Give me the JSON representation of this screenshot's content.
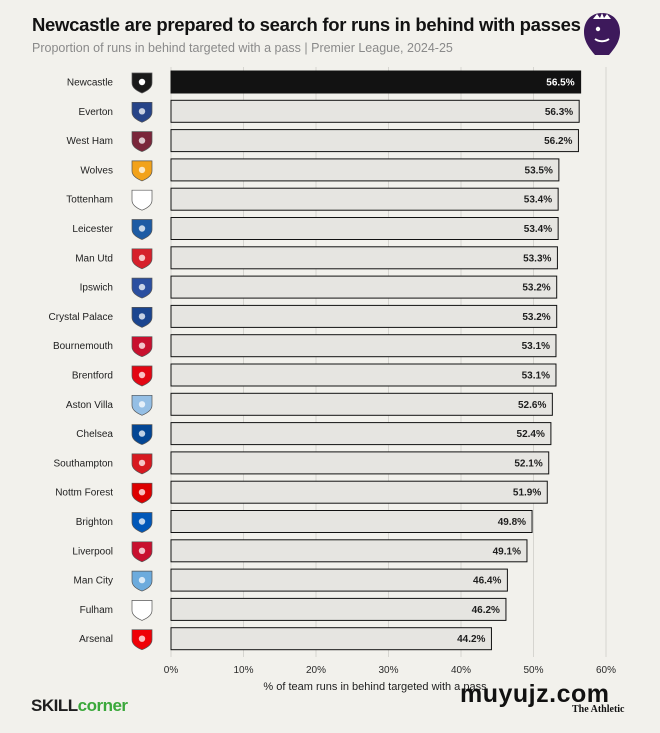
{
  "header": {
    "title": "Newcastle are prepared to search for runs in behind with passes",
    "subtitle": "Proportion of runs in behind targeted with a pass | Premier League, 2024-25"
  },
  "icons": {
    "league_logo": "premier-league-lion-icon",
    "team_badge": "club-crest-icon"
  },
  "colors": {
    "background": "#f2f1ec",
    "highlight_bar": "#121212",
    "bar": "#e6e5e1",
    "bar_border": "#121212",
    "league_purple": "#3d195b",
    "brand_green": "#3ba83b"
  },
  "footer": {
    "brand_a": "SKILL",
    "brand_b": "corner",
    "watermark": "muyujz.com",
    "publisher": "The Athletic"
  },
  "chart_data": {
    "type": "bar",
    "orientation": "horizontal",
    "title": "Newcastle are prepared to search for runs in behind with passes",
    "subtitle": "Proportion of runs in behind targeted with a pass | Premier League, 2024-25",
    "xlabel": "% of team runs in behind targeted with a pass",
    "xlim": [
      0,
      60
    ],
    "xticks": [
      "0%",
      "10%",
      "20%",
      "30%",
      "40%",
      "50%",
      "60%"
    ],
    "tick_values": [
      0,
      10,
      20,
      30,
      40,
      50,
      60
    ],
    "grid": true,
    "highlight": "Newcastle",
    "categories": [
      "Newcastle",
      "Everton",
      "West Ham",
      "Wolves",
      "Tottenham",
      "Leicester",
      "Man Utd",
      "Ipswich",
      "Crystal Palace",
      "Bournemouth",
      "Brentford",
      "Aston Villa",
      "Chelsea",
      "Southampton",
      "Nottm Forest",
      "Brighton",
      "Liverpool",
      "Man City",
      "Fulham",
      "Arsenal"
    ],
    "values": [
      56.5,
      56.3,
      56.2,
      53.5,
      53.4,
      53.4,
      53.3,
      53.2,
      53.2,
      53.1,
      53.1,
      52.6,
      52.4,
      52.1,
      51.9,
      49.8,
      49.1,
      46.4,
      46.2,
      44.2
    ],
    "value_labels": [
      "56.5%",
      "56.3%",
      "56.2%",
      "53.5%",
      "53.4%",
      "53.4%",
      "53.3%",
      "53.2%",
      "53.2%",
      "53.1%",
      "53.1%",
      "52.6%",
      "52.4%",
      "52.1%",
      "51.9%",
      "49.8%",
      "49.1%",
      "46.4%",
      "46.2%",
      "44.2%"
    ],
    "badge_colors": [
      "#1a1a1a",
      "#274488",
      "#7a263a",
      "#f2a21b",
      "#ffffff",
      "#1d5ba4",
      "#d6202b",
      "#2b4fa0",
      "#1b458f",
      "#c8102e",
      "#e30613",
      "#95bfe5",
      "#034694",
      "#d71920",
      "#dd0000",
      "#0057b8",
      "#c8102e",
      "#6cabdd",
      "#ffffff",
      "#ef0107"
    ]
  }
}
